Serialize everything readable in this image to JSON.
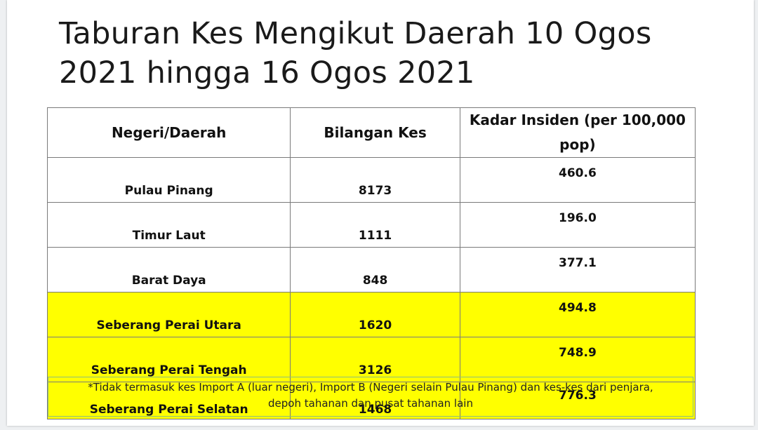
{
  "title": "Taburan Kes Mengikut Daerah  10 Ogos\n2021 hingga 16 Ogos 2021",
  "table": {
    "headers": [
      "Negeri/Daerah",
      "Bilangan Kes",
      "Kadar Insiden (per 100,000 pop)"
    ],
    "rows": [
      {
        "area": "Pulau Pinang",
        "cases": "8173",
        "rate": "460.6"
      },
      {
        "area": "Timur Laut",
        "cases": "1111",
        "rate": "196.0"
      },
      {
        "area": "Barat Daya",
        "cases": "848",
        "rate": "377.1"
      },
      {
        "area": "Seberang Perai Utara",
        "cases": "1620",
        "rate": "494.8"
      },
      {
        "area": "Seberang Perai Tengah",
        "cases": "3126",
        "rate": "748.9"
      },
      {
        "area": "Seberang Perai Selatan",
        "cases": "1468",
        "rate": "776.3"
      }
    ]
  },
  "highlight_color": "#ffff00",
  "note": "*Tidak termasuk kes Import A (luar negeri), Import B (Negeri selain Pulau Pinang) dan kes-kes dari penjara,\ndepoh tahanan dan pusat tahanan lain"
}
